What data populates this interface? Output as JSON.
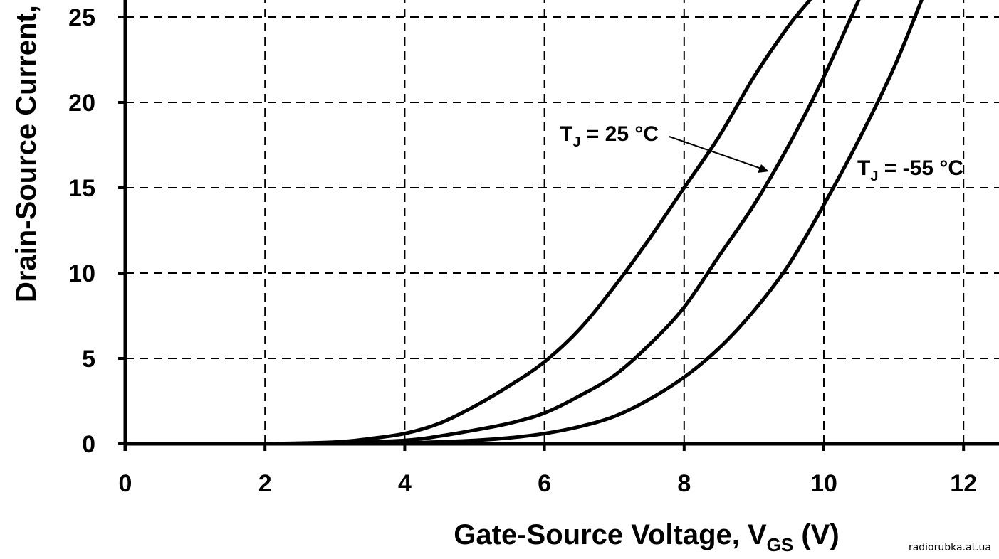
{
  "chart_data": {
    "type": "line",
    "xlabel_main": "Gate-Source Voltage, V",
    "xlabel_sub": "GS",
    "xlabel_unit": " (V)",
    "ylabel": "Drain-Source Current,",
    "xlim": [
      0,
      12.5
    ],
    "ylim": [
      0,
      26
    ],
    "x_ticks": [
      0,
      2,
      4,
      6,
      8,
      10,
      12
    ],
    "y_ticks": [
      0,
      5,
      10,
      15,
      20,
      25
    ],
    "grid": true,
    "annotations": [
      {
        "main": "T",
        "sub": "J",
        "rest": " = 25 °C"
      },
      {
        "main": "T",
        "sub": "J",
        "rest": " = -55 °C"
      }
    ],
    "series": [
      {
        "x": [
          2,
          3,
          3.5,
          4,
          4.5,
          5,
          5.5,
          6,
          6.5,
          7,
          7.5,
          8,
          8.5,
          9,
          9.5,
          9.8
        ],
        "y": [
          0,
          0.1,
          0.3,
          0.6,
          1.2,
          2.2,
          3.4,
          4.8,
          6.7,
          9.2,
          12,
          15,
          18,
          21.5,
          24.5,
          26
        ]
      },
      {
        "x": [
          2,
          3,
          4,
          4.5,
          5,
          5.5,
          6,
          6.5,
          7,
          7.5,
          8,
          8.5,
          9,
          9.5,
          10,
          10.5
        ],
        "y": [
          0,
          0.05,
          0.2,
          0.45,
          0.8,
          1.2,
          1.8,
          2.8,
          4,
          5.8,
          8,
          11,
          14,
          17.5,
          21.5,
          26
        ]
      },
      {
        "x": [
          3,
          4,
          5,
          5.5,
          6,
          6.5,
          7,
          7.5,
          8,
          8.5,
          9,
          9.5,
          10,
          10.5,
          11,
          11.4
        ],
        "y": [
          0,
          0.05,
          0.2,
          0.35,
          0.6,
          1,
          1.6,
          2.6,
          3.9,
          5.6,
          7.8,
          10.5,
          14,
          17.8,
          22,
          26
        ]
      }
    ]
  },
  "watermark": "radiorubka.at.ua"
}
